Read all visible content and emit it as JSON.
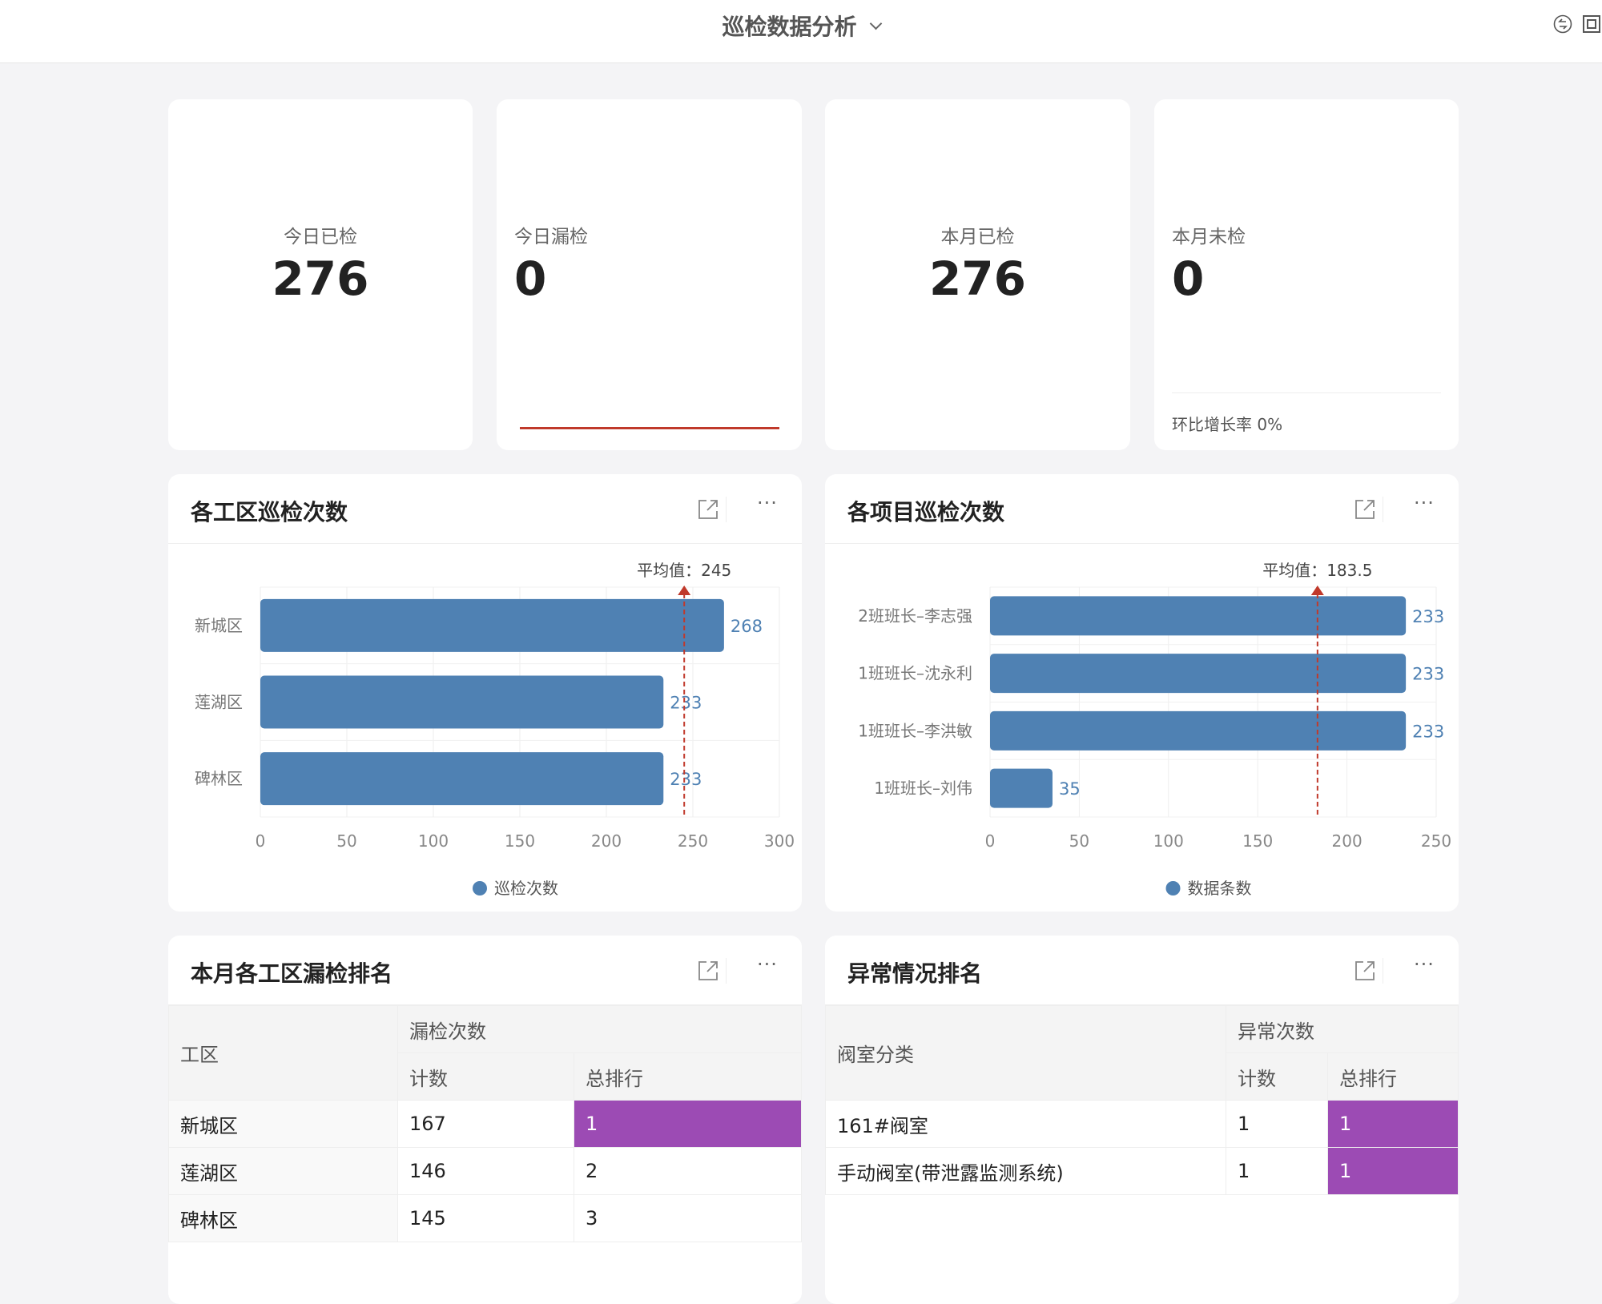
{
  "header": {
    "title": "巡检数据分析",
    "icons": [
      "sync-icon",
      "exit-fullscreen-icon"
    ]
  },
  "kpis": [
    {
      "label": "今日已检",
      "value": "276"
    },
    {
      "label": "今日漏检",
      "value": "0"
    },
    {
      "label": "本月已检",
      "value": "276"
    },
    {
      "label": "本月未检",
      "value": "0",
      "footer": "环比增长率 0%"
    }
  ],
  "colors": {
    "bar": "#4f81b3",
    "avg_line": "#c0392b",
    "highlight": "#9c4bb4",
    "kpi_line": "#c0392b"
  },
  "chart_data": [
    {
      "type": "bar",
      "orientation": "horizontal",
      "title": "各工区巡检次数",
      "categories": [
        "新城区",
        "莲湖区",
        "碑林区"
      ],
      "series": [
        {
          "name": "巡检次数",
          "values": [
            268,
            233,
            233
          ]
        }
      ],
      "xlim": [
        0,
        300
      ],
      "xticks": [
        "0",
        "50",
        "100",
        "150",
        "200",
        "250",
        "300"
      ],
      "average": {
        "label": "平均值：245",
        "value": 245
      },
      "grid": true,
      "legend": "bottom"
    },
    {
      "type": "bar",
      "orientation": "horizontal",
      "title": "各项目巡检次数",
      "categories": [
        "2班班长–李志强",
        "1班班长–沈永利",
        "1班班长–李洪敏",
        "1班班长–刘伟"
      ],
      "series": [
        {
          "name": "数据条数",
          "values": [
            233,
            233,
            233,
            35
          ]
        }
      ],
      "xlim": [
        0,
        250
      ],
      "xticks": [
        "0",
        "50",
        "100",
        "150",
        "200",
        "250"
      ],
      "average": {
        "label": "平均值：183.5",
        "value": 183.5
      },
      "grid": true,
      "legend": "bottom"
    }
  ],
  "tables": [
    {
      "title": "本月各工区漏检排名",
      "col0": "工区",
      "group": "漏检次数",
      "sub": [
        "计数",
        "总排行"
      ],
      "rows": [
        {
          "name": "新城区",
          "count": "167",
          "rank": "1",
          "hl": true
        },
        {
          "name": "莲湖区",
          "count": "146",
          "rank": "2"
        },
        {
          "name": "碑林区",
          "count": "145",
          "rank": "3"
        }
      ]
    },
    {
      "title": "异常情况排名",
      "col0": "阀室分类",
      "group": "异常次数",
      "sub": [
        "计数",
        "总排行"
      ],
      "rows": [
        {
          "name": "161#阀室",
          "count": "1",
          "rank": "1",
          "hl": true
        },
        {
          "name": "手动阀室(带泄露监测系统)",
          "count": "1",
          "rank": "1",
          "hl": true
        }
      ]
    }
  ]
}
